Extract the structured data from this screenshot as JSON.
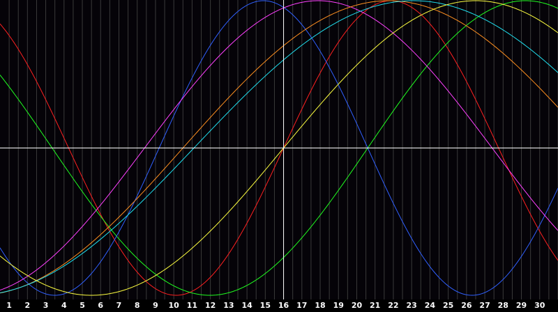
{
  "chart_data": {
    "type": "line",
    "title": "",
    "xlabel": "",
    "ylabel": "",
    "x_ticks": [
      "1",
      "2",
      "3",
      "4",
      "5",
      "6",
      "7",
      "8",
      "9",
      "10",
      "11",
      "12",
      "13",
      "14",
      "15",
      "16",
      "17",
      "18",
      "19",
      "20",
      "21",
      "22",
      "23",
      "24",
      "25",
      "26",
      "27",
      "28",
      "29",
      "30"
    ],
    "xlim": [
      0.5,
      31.0
    ],
    "ylim": [
      -1,
      1
    ],
    "grid": true,
    "crosshair": {
      "x": 16,
      "y": 0
    },
    "colors": {
      "background": "#050308",
      "grid": "#3a3a3a",
      "crosshair": "#ffffff"
    },
    "series": [
      {
        "color": "#ff2020",
        "period": 23.5,
        "center": 16.0
      },
      {
        "color": "#20ff20",
        "period": 34.5,
        "center": 20.6
      },
      {
        "color": "#3060ff",
        "period": 22.8,
        "center": 9.2
      },
      {
        "color": "#ff40ff",
        "period": 38.0,
        "center": 8.4
      },
      {
        "color": "#ff9020",
        "period": 45.0,
        "center": 10.5
      },
      {
        "color": "#20e0f0",
        "period": 48.0,
        "center": 11.1
      },
      {
        "color": "#ffff40",
        "period": 42.0,
        "center": 16.0
      }
    ]
  }
}
